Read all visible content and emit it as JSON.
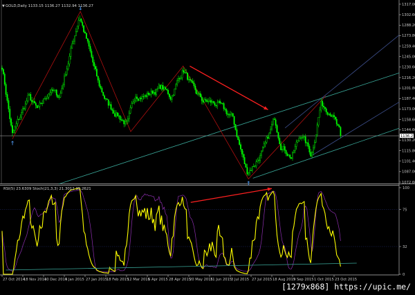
{
  "window": {
    "watermark": "[1279x868] https://upic.me/"
  },
  "colors": {
    "background": "#000000",
    "candles": "#00ff00",
    "rsi": "#ffff00",
    "stoch": "#8e2fb0",
    "zigzag": "#b01010",
    "arrow": "#ff2020",
    "teal_line": "#3aa89a",
    "blue_line": "#3d4f8c",
    "axis": "#c8c8c8",
    "signal_arrow": "#4a8fe0"
  },
  "chart_data": [
    {
      "type": "candlestick",
      "title": "GOLD,Daily",
      "ohlc_header": "GOLD,Daily  1133.15 1136.27 1132.94 1136.27",
      "current_price": "1136.27",
      "ylim": [
        1072.6,
        1317.0
      ],
      "y_ticks": [
        "1317.00",
        "1302.60",
        "1288.20",
        "1273.80",
        "1259.40",
        "1245.00",
        "1230.60",
        "1216.20",
        "1201.80",
        "1187.40",
        "1173.00",
        "1158.60",
        "1144.60",
        "1130.20",
        "1115.80",
        "1101.40",
        "1087.00",
        "1072.60"
      ],
      "x_ticks": [
        "27 Oct 2014",
        "18 Nov 2014",
        "10 Dec 2014",
        "5 Jan 2015",
        "27 Jan 2015",
        "18 Feb 2015",
        "12 Mar 2015",
        "6 Apr 2015",
        "28 Apr 2015",
        "20 May 2015",
        "11 Jun 2015",
        "3 Jul 2015",
        "27 Jul 2015",
        "18 Aug 2015",
        "9 Sep 2015",
        "1 Oct 2015",
        "23 Oct 2015"
      ],
      "x_tick_dates": [
        "2014-10-27",
        "2014-11-18",
        "2014-12-10",
        "2015-01-05",
        "2015-01-27",
        "2015-02-18",
        "2015-03-12",
        "2015-04-06",
        "2015-04-28",
        "2015-05-20",
        "2015-06-11",
        "2015-07-03",
        "2015-07-27",
        "2015-08-18",
        "2015-09-09",
        "2015-10-01",
        "2015-10-23"
      ],
      "close_path": [
        [
          "2014-10-27",
          1232
        ],
        [
          "2014-11-07",
          1137
        ],
        [
          "2014-11-24",
          1190
        ],
        [
          "2014-12-04",
          1170
        ],
        [
          "2014-12-18",
          1199
        ],
        [
          "2014-12-30",
          1190
        ],
        [
          "2015-01-07",
          1227
        ],
        [
          "2015-01-21",
          1302
        ],
        [
          "2015-01-29",
          1266
        ],
        [
          "2015-02-10",
          1208
        ],
        [
          "2015-02-20",
          1180
        ],
        [
          "2015-03-13",
          1151
        ],
        [
          "2015-03-23",
          1194
        ],
        [
          "2015-04-02",
          1190
        ],
        [
          "2015-04-21",
          1203
        ],
        [
          "2015-05-01",
          1190
        ],
        [
          "2015-05-14",
          1228
        ],
        [
          "2015-05-25",
          1198
        ],
        [
          "2015-06-04",
          1184
        ],
        [
          "2015-06-19",
          1180
        ],
        [
          "2015-07-06",
          1160
        ],
        [
          "2015-07-14",
          1122
        ],
        [
          "2015-07-22",
          1086
        ],
        [
          "2015-07-31",
          1098
        ],
        [
          "2015-08-11",
          1121
        ],
        [
          "2015-08-21",
          1160
        ],
        [
          "2015-08-28",
          1124
        ],
        [
          "2015-09-08",
          1107
        ],
        [
          "2015-09-18",
          1140
        ],
        [
          "2015-09-29",
          1110
        ],
        [
          "2015-10-09",
          1180
        ],
        [
          "2015-10-20",
          1170
        ],
        [
          "2015-10-30",
          1136.27
        ]
      ],
      "zigzag": [
        [
          "2014-11-07",
          1132
        ],
        [
          "2015-01-22",
          1307
        ],
        [
          "2015-03-17",
          1142
        ],
        [
          "2015-05-14",
          1232
        ],
        [
          "2015-07-24",
          1077
        ],
        [
          "2015-10-14",
          1191
        ]
      ],
      "fractal_arrows": [
        {
          "type": "up",
          "date": "2014-11-07",
          "price": 1132
        },
        {
          "type": "down",
          "date": "2015-01-22",
          "price": 1307
        },
        {
          "type": "up",
          "date": "2015-07-24",
          "price": 1077
        }
      ],
      "trendlines": [
        {
          "color": "teal",
          "from": [
            "2014-12-29",
            1070
          ],
          "to": [
            "2015-10-08",
            1187
          ]
        },
        {
          "color": "teal",
          "from": [
            "2015-07-29",
            1078
          ],
          "to": [
            "2015-09-28",
            1105
          ]
        },
        {
          "color": "blue",
          "from": [
            "2015-09-01",
            1147
          ],
          "to": [
            "2015-10-08",
            1186
          ]
        },
        {
          "color": "blue",
          "from": [
            "2015-09-28",
            1108
          ],
          "to": [
            "2015-10-27",
            1131
          ]
        }
      ],
      "arrow": {
        "from": [
          "2015-05-21",
          1232
        ],
        "to": [
          "2015-08-14",
          1172
        ]
      }
    },
    {
      "type": "line",
      "header": "RSI(5) 23.6309  Stoch(21,3,3) 21.3012 35.2621",
      "series": [
        {
          "name": "RSI(5)"
        },
        {
          "name": "Stoch(21,3,3)"
        }
      ],
      "ylim": [
        0,
        100
      ],
      "y_ticks": [
        "100",
        "75",
        "32",
        "0"
      ],
      "levels": [
        75,
        32
      ],
      "trendline": {
        "from": [
          "2014-10-31",
          4.8
        ],
        "to": [
          "2015-11-16",
          12.8
        ]
      },
      "arrow": {
        "from": [
          "2015-05-22",
          83
        ],
        "to": [
          "2015-08-18",
          99
        ]
      }
    }
  ]
}
